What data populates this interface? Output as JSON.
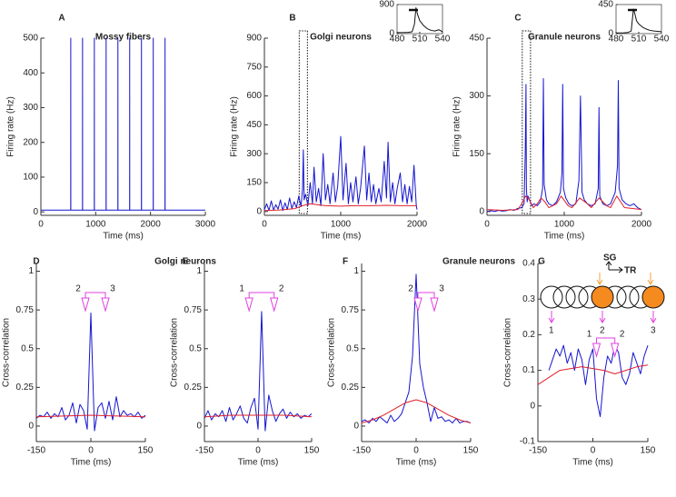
{
  "chart_data": [
    {
      "type": "line",
      "panel_label": "A",
      "title": "Mossy fibers",
      "xlabel": "Time (ms)",
      "ylabel": "Firing rate (Hz)",
      "xlim": [
        0,
        3000
      ],
      "xticks": [
        0,
        1000,
        2000,
        3000
      ],
      "ylim": [
        -10,
        500
      ],
      "yticks": [
        0,
        100,
        200,
        300,
        400,
        500
      ],
      "series": [
        {
          "color": "#1515d0",
          "x": [
            0,
            544,
            545,
            546,
            759,
            760,
            761,
            974,
            975,
            976,
            1189,
            1190,
            1191,
            1404,
            1405,
            1406,
            1619,
            1620,
            1621,
            1834,
            1835,
            1836,
            2049,
            2050,
            2051,
            2264,
            2265,
            2266,
            3000
          ],
          "values": [
            5,
            5,
            500,
            5,
            5,
            500,
            5,
            5,
            500,
            5,
            5,
            500,
            5,
            5,
            500,
            5,
            5,
            500,
            5,
            5,
            500,
            5,
            5,
            500,
            5,
            5,
            500,
            5,
            5
          ]
        }
      ]
    },
    {
      "type": "line",
      "panel_label": "B",
      "title": "Golgi neurons",
      "xlabel": "Time (ms)",
      "ylabel": "Firing rate (Hz)",
      "zoom": true,
      "xlim": [
        0,
        2000
      ],
      "xticks": [
        0,
        1000,
        2000
      ],
      "ylim": [
        -20,
        900
      ],
      "yticks": [
        0,
        150,
        300,
        450,
        600,
        750,
        900
      ],
      "series": [
        {
          "color": "#1515d0",
          "x": [
            0,
            30,
            60,
            90,
            120,
            150,
            180,
            210,
            240,
            270,
            300,
            330,
            360,
            390,
            420,
            450,
            480,
            500,
            510,
            520,
            540,
            570,
            600,
            630,
            650,
            680,
            710,
            740,
            770,
            800,
            830,
            860,
            900,
            930,
            960,
            1000,
            1030,
            1070,
            1100,
            1130,
            1160,
            1200,
            1230,
            1260,
            1310,
            1340,
            1370,
            1400,
            1430,
            1460,
            1500,
            1530,
            1570,
            1600,
            1620,
            1650,
            1680,
            1710,
            1740,
            1780,
            1810,
            1840,
            1870,
            1900,
            1930,
            1960,
            1990,
            2000
          ],
          "values": [
            10,
            40,
            5,
            55,
            8,
            35,
            12,
            60,
            5,
            45,
            10,
            70,
            15,
            50,
            20,
            80,
            25,
            120,
            320,
            60,
            90,
            30,
            150,
            40,
            230,
            50,
            120,
            30,
            300,
            60,
            140,
            40,
            200,
            50,
            130,
            390,
            60,
            250,
            40,
            150,
            50,
            180,
            40,
            120,
            340,
            60,
            200,
            50,
            140,
            40,
            120,
            50,
            260,
            70,
            360,
            50,
            150,
            40,
            120,
            200,
            50,
            140,
            40,
            130,
            50,
            240,
            30,
            10
          ]
        },
        {
          "color": "#e0202a",
          "x": [
            0,
            200,
            400,
            500,
            600,
            700,
            800,
            1000,
            1200,
            1400,
            1600,
            1800,
            2000
          ],
          "values": [
            5,
            8,
            15,
            30,
            40,
            35,
            30,
            28,
            30,
            30,
            32,
            30,
            30
          ]
        }
      ]
    },
    {
      "type": "line",
      "xlim": [
        480,
        540
      ],
      "xticks": [
        480,
        510,
        540
      ],
      "ylim": [
        0,
        900
      ],
      "yticks": [
        0,
        900
      ],
      "series": [
        {
          "color": "#111111",
          "x": [
            480,
            490,
            495,
            500,
            503,
            505,
            507,
            510,
            515,
            520,
            525,
            530,
            535,
            540
          ],
          "values": [
            30,
            35,
            40,
            60,
            300,
            800,
            600,
            400,
            250,
            150,
            100,
            80,
            120,
            60
          ]
        }
      ]
    },
    {
      "type": "line",
      "panel_label": "C",
      "title": "Granule neurons",
      "xlabel": "Time (ms)",
      "ylabel": "Firing rate (Hz)",
      "zoom": true,
      "xlim": [
        0,
        2000
      ],
      "xticks": [
        0,
        1000,
        2000
      ],
      "ylim": [
        -10,
        450
      ],
      "yticks": [
        0,
        150,
        300,
        450
      ],
      "series": [
        {
          "color": "#1515d0",
          "x": [
            0,
            50,
            100,
            150,
            200,
            250,
            300,
            350,
            400,
            450,
            480,
            495,
            505,
            510,
            520,
            530,
            550,
            580,
            610,
            650,
            690,
            720,
            730,
            740,
            770,
            800,
            850,
            900,
            950,
            970,
            980,
            990,
            1020,
            1060,
            1100,
            1150,
            1190,
            1210,
            1230,
            1260,
            1300,
            1350,
            1400,
            1440,
            1450,
            1460,
            1500,
            1550,
            1600,
            1660,
            1690,
            1700,
            1710,
            1750,
            1800,
            1850,
            1900,
            1950,
            2000
          ],
          "values": [
            0,
            2,
            0,
            3,
            1,
            2,
            5,
            3,
            8,
            10,
            20,
            150,
            330,
            60,
            25,
            40,
            30,
            15,
            20,
            15,
            25,
            60,
            345,
            70,
            30,
            20,
            15,
            25,
            50,
            100,
            330,
            60,
            35,
            20,
            15,
            20,
            80,
            300,
            50,
            30,
            20,
            15,
            20,
            60,
            270,
            40,
            20,
            15,
            20,
            50,
            120,
            340,
            60,
            30,
            20,
            15,
            20,
            10,
            5
          ]
        },
        {
          "color": "#e0202a",
          "x": [
            0,
            200,
            400,
            450,
            500,
            550,
            600,
            650,
            700,
            750,
            800,
            900,
            960,
            1050,
            1100,
            1200,
            1300,
            1350,
            1450,
            1550,
            1600,
            1680,
            1780,
            2000
          ],
          "values": [
            5,
            3,
            5,
            20,
            40,
            30,
            10,
            20,
            35,
            25,
            10,
            20,
            40,
            15,
            10,
            35,
            20,
            10,
            35,
            15,
            10,
            40,
            10,
            5
          ]
        }
      ]
    },
    {
      "type": "line",
      "xlim": [
        480,
        540
      ],
      "xticks": [
        480,
        510,
        540
      ],
      "ylim": [
        0,
        450
      ],
      "yticks": [
        0,
        450
      ],
      "series": [
        {
          "color": "#111111",
          "x": [
            480,
            490,
            495,
            500,
            503,
            505,
            507,
            510,
            515,
            520,
            525,
            530,
            535,
            540
          ],
          "values": [
            10,
            12,
            15,
            40,
            380,
            300,
            200,
            150,
            100,
            70,
            50,
            40,
            35,
            30
          ]
        }
      ]
    },
    {
      "type": "line",
      "panel_label": "D",
      "xlabel": "Time (ms)",
      "ylabel": "Cross-correlation",
      "xlim": [
        -150,
        150
      ],
      "xticks": [
        -150,
        0,
        150
      ],
      "ylim": [
        -0.1,
        1.05
      ],
      "yticks": [
        0,
        0.25,
        0.5,
        0.75,
        1
      ],
      "brackets": [
        {
          "text": "2",
          "x": -15
        },
        {
          "text": "3",
          "x": 40
        }
      ],
      "series": [
        {
          "color": "#1515d0",
          "x": [
            -150,
            -140,
            -130,
            -120,
            -110,
            -100,
            -90,
            -80,
            -70,
            -60,
            -50,
            -40,
            -30,
            -20,
            -10,
            0,
            10,
            20,
            30,
            40,
            50,
            60,
            70,
            80,
            90,
            100,
            110,
            120,
            130,
            140,
            150
          ],
          "values": [
            0.05,
            0.07,
            0.06,
            0.09,
            0.05,
            0.08,
            0.06,
            0.12,
            0.04,
            0.07,
            0.15,
            0.02,
            0.14,
            0.1,
            -0.02,
            0.73,
            -0.03,
            0.12,
            0.15,
            0.05,
            0.16,
            0.04,
            0.19,
            0.06,
            0.1,
            0.07,
            0.08,
            0.06,
            0.09,
            0.05,
            0.07
          ]
        },
        {
          "color": "#e0202a",
          "x": [
            -150,
            -75,
            0,
            75,
            150
          ],
          "values": [
            0.06,
            0.065,
            0.07,
            0.065,
            0.06
          ]
        }
      ]
    },
    {
      "type": "line",
      "panel_label": "E",
      "xlabel": "Time (ms)",
      "ylabel": "Cross-correlation",
      "xlim": [
        -150,
        150
      ],
      "xticks": [
        -150,
        0,
        150
      ],
      "ylim": [
        -0.1,
        1.05
      ],
      "yticks": [
        0,
        0.25,
        0.5,
        0.75,
        1
      ],
      "brackets": [
        {
          "text": "1",
          "x": -25
        },
        {
          "text": "2",
          "x": 45
        }
      ],
      "series": [
        {
          "color": "#1515d0",
          "x": [
            -150,
            -140,
            -130,
            -120,
            -110,
            -100,
            -90,
            -80,
            -70,
            -60,
            -50,
            -40,
            -30,
            -20,
            -10,
            0,
            10,
            20,
            30,
            40,
            50,
            60,
            70,
            80,
            90,
            100,
            110,
            120,
            130,
            140,
            150
          ],
          "values": [
            0.05,
            0.1,
            0.04,
            0.08,
            0.06,
            0.1,
            0.03,
            0.12,
            0.04,
            0.08,
            0.13,
            0.05,
            0.02,
            0.12,
            0.18,
            -0.02,
            0.74,
            -0.03,
            0.2,
            0.1,
            0.03,
            0.08,
            0.11,
            0.05,
            0.09,
            0.06,
            0.08,
            0.05,
            0.07,
            0.06,
            0.08
          ]
        },
        {
          "color": "#e0202a",
          "x": [
            -150,
            -75,
            0,
            75,
            150
          ],
          "values": [
            0.06,
            0.07,
            0.07,
            0.07,
            0.06
          ]
        }
      ]
    },
    {
      "type": "line",
      "panel_label": "F",
      "xlabel": "Time (ms)",
      "ylabel": "Cross-correlation",
      "xlim": [
        -150,
        150
      ],
      "xticks": [
        -150,
        0,
        150
      ],
      "ylim": [
        -0.1,
        1.05
      ],
      "yticks": [
        0,
        0.25,
        0.5,
        0.75,
        1
      ],
      "brackets": [
        {
          "text": "2",
          "x": 5
        },
        {
          "text": "3",
          "x": 50
        }
      ],
      "series": [
        {
          "color": "#1515d0",
          "x": [
            -150,
            -140,
            -130,
            -120,
            -110,
            -100,
            -90,
            -80,
            -70,
            -60,
            -50,
            -40,
            -30,
            -20,
            -10,
            0,
            10,
            20,
            30,
            40,
            50,
            60,
            70,
            80,
            90,
            100,
            110,
            120,
            130,
            140,
            150
          ],
          "values": [
            0.03,
            0.04,
            0.02,
            0.05,
            0.03,
            0.06,
            0.04,
            0.02,
            0.07,
            0.03,
            0.05,
            0.08,
            0.15,
            0.22,
            0.45,
            0.98,
            0.4,
            0.25,
            0.15,
            0.03,
            0.12,
            0.05,
            0.06,
            0.03,
            0.04,
            0.02,
            0.05,
            0.02,
            0.03,
            0.03,
            0.02
          ]
        },
        {
          "color": "#e0202a",
          "x": [
            -150,
            -120,
            -90,
            -60,
            -30,
            0,
            30,
            60,
            90,
            120,
            150
          ],
          "values": [
            0.02,
            0.04,
            0.07,
            0.11,
            0.15,
            0.17,
            0.15,
            0.11,
            0.07,
            0.04,
            0.02
          ]
        }
      ]
    },
    {
      "type": "line",
      "panel_label": "G",
      "xlabel": "Time (ms)",
      "ylabel": "Cross-correlation",
      "xlim": [
        -150,
        150
      ],
      "xticks": [
        -150,
        0,
        150
      ],
      "ylim": [
        -0.1,
        0.4
      ],
      "yticks": [
        -0.1,
        0,
        0.1,
        0.2,
        0.3,
        0.4
      ],
      "brackets": [
        {
          "text": "1",
          "x": 10
        },
        {
          "text": "2",
          "x": 60
        }
      ],
      "series": [
        {
          "color": "#1515d0",
          "x": [
            -120,
            -110,
            -100,
            -90,
            -80,
            -70,
            -60,
            -50,
            -40,
            -30,
            -20,
            -10,
            0,
            10,
            20,
            30,
            40,
            50,
            60,
            70,
            80,
            90,
            100,
            110,
            120,
            130,
            140,
            150
          ],
          "values": [
            0.1,
            0.13,
            0.16,
            0.14,
            0.17,
            0.12,
            0.15,
            0.1,
            0.16,
            0.13,
            0.06,
            0.13,
            0.16,
            0.02,
            -0.03,
            0.08,
            0.14,
            0.12,
            0.17,
            0.15,
            0.08,
            0.06,
            0.09,
            0.15,
            0.12,
            0.09,
            0.14,
            0.17
          ]
        },
        {
          "color": "#e0202a",
          "x": [
            -150,
            -120,
            -90,
            -60,
            -30,
            0,
            30,
            60,
            90,
            120,
            150
          ],
          "values": [
            0.06,
            0.08,
            0.1,
            0.105,
            0.11,
            0.105,
            0.1,
            0.09,
            0.1,
            0.11,
            0.115
          ]
        }
      ]
    }
  ],
  "group_titles": [
    "Golgi neurons",
    "Granule neurons"
  ],
  "diagram": {
    "axis_labels": [
      "SG",
      "TR"
    ],
    "site_labels": [
      "1",
      "2",
      "3"
    ]
  }
}
